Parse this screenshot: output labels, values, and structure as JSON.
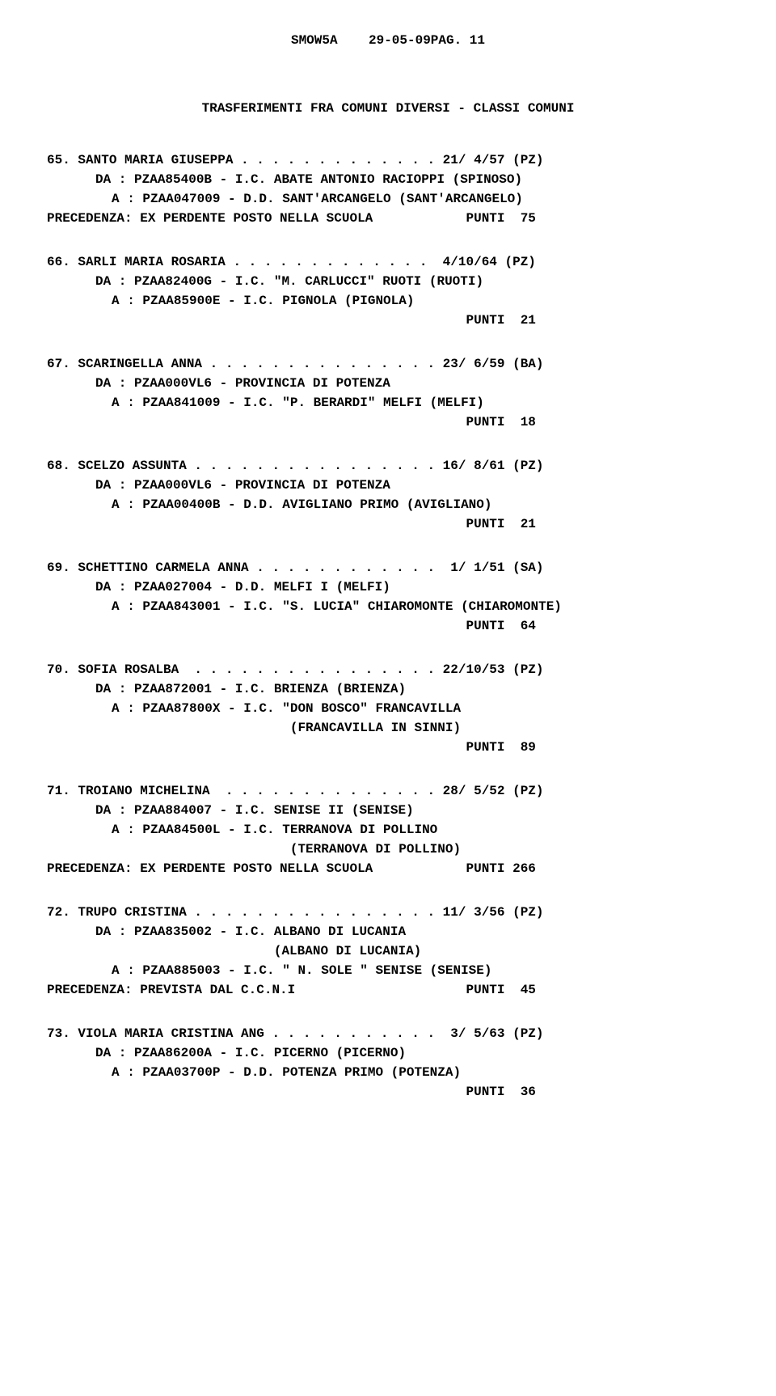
{
  "header": {
    "code": "SMOW5A",
    "date_page": "29-05-09PAG. 11",
    "title": "TRASFERIMENTI FRA COMUNI DIVERSI - CLASSI COMUNI"
  },
  "entries": [
    {
      "num": "65",
      "name": "SANTO MARIA GIUSEPPA",
      "dots": ". . . . . . . . . . . . .",
      "dob": "21/ 4/57 (PZ)",
      "da": "DA : PZAA85400B - I.C. ABATE ANTONIO RACIOPPI (SPINOSO)",
      "a": "A : PZAA047009 - D.D. SANT'ARCANGELO (SANT'ARCANGELO)",
      "extra": "",
      "note": "PRECEDENZA: EX PERDENTE POSTO NELLA SCUOLA            PUNTI  75"
    },
    {
      "num": "66",
      "name": "SARLI MARIA ROSARIA",
      "dots": ". . . . . . . . . . . . .",
      "dob": " 4/10/64 (PZ)",
      "da": "DA : PZAA82400G - I.C. \"M. CARLUCCI\" RUOTI (RUOTI)",
      "a": "A : PZAA85900E - I.C. PIGNOLA (PIGNOLA)",
      "extra": "",
      "note": "                                                      PUNTI  21"
    },
    {
      "num": "67",
      "name": "SCARINGELLA ANNA",
      "dots": ". . . . . . . . . . . . . . .",
      "dob": "23/ 6/59 (BA)",
      "da": "DA : PZAA000VL6 - PROVINCIA DI POTENZA",
      "a": "A : PZAA841009 - I.C. \"P. BERARDI\" MELFI (MELFI)",
      "extra": "",
      "note": "                                                      PUNTI  18"
    },
    {
      "num": "68",
      "name": "SCELZO ASSUNTA",
      "dots": ". . . . . . . . . . . . . . . .",
      "dob": "16/ 8/61 (PZ)",
      "da": "DA : PZAA000VL6 - PROVINCIA DI POTENZA",
      "a": "A : PZAA00400B - D.D. AVIGLIANO PRIMO (AVIGLIANO)",
      "extra": "",
      "note": "                                                      PUNTI  21"
    },
    {
      "num": "69",
      "name": "SCHETTINO CARMELA ANNA",
      "dots": ". . . . . . . . . . . .",
      "dob": " 1/ 1/51 (SA)",
      "da": "DA : PZAA027004 - D.D. MELFI I (MELFI)",
      "a": "A : PZAA843001 - I.C. \"S. LUCIA\" CHIAROMONTE (CHIAROMONTE)",
      "extra": "",
      "note": "                                                      PUNTI  64"
    },
    {
      "num": "70",
      "name": "SOFIA ROSALBA ",
      "dots": ". . . . . . . . . . . . . . . .",
      "dob": "22/10/53 (PZ)",
      "da": "DA : PZAA872001 - I.C. BRIENZA (BRIENZA)",
      "a": "A : PZAA87800X - I.C. \"DON BOSCO\" FRANCAVILLA",
      "extra": "                       (FRANCAVILLA IN SINNI)",
      "note": "                                                      PUNTI  89"
    },
    {
      "num": "71",
      "name": "TROIANO MICHELINA ",
      "dots": ". . . . . . . . . . . . . .",
      "dob": "28/ 5/52 (PZ)",
      "da": "DA : PZAA884007 - I.C. SENISE II (SENISE)",
      "a": "A : PZAA84500L - I.C. TERRANOVA DI POLLINO",
      "extra": "                       (TERRANOVA DI POLLINO)",
      "note": "PRECEDENZA: EX PERDENTE POSTO NELLA SCUOLA            PUNTI 266"
    },
    {
      "num": "72",
      "name": "TRUPO CRISTINA",
      "dots": ". . . . . . . . . . . . . . . .",
      "dob": "11/ 3/56 (PZ)",
      "da": "DA : PZAA835002 - I.C. ALBANO DI LUCANIA",
      "da2": "                       (ALBANO DI LUCANIA)",
      "a": "A : PZAA885003 - I.C. \" N. SOLE \" SENISE (SENISE)",
      "extra": "",
      "note": "PRECEDENZA: PREVISTA DAL C.C.N.I                      PUNTI  45"
    },
    {
      "num": "73",
      "name": "VIOLA MARIA CRISTINA ANG",
      "dots": ". . . . . . . . . . .",
      "dob": " 3/ 5/63 (PZ)",
      "da": "DA : PZAA86200A - I.C. PICERNO (PICERNO)",
      "a": "A : PZAA03700P - D.D. POTENZA PRIMO (POTENZA)",
      "extra": "",
      "note": "                                                      PUNTI  36"
    }
  ]
}
